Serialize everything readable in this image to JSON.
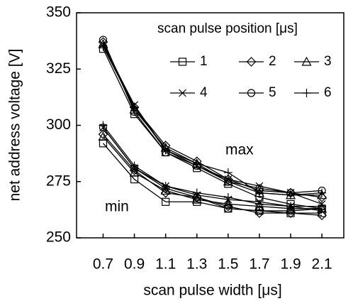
{
  "chart_data": {
    "type": "line",
    "xlabel": "scan pulse width [μs]",
    "ylabel": "net address voltage [V]",
    "legend_title": "scan pulse position [μs]",
    "legend_position": "upper right",
    "annotations": [
      "max",
      "min"
    ],
    "color": "#000000",
    "x": [
      0.7,
      0.9,
      1.1,
      1.3,
      1.5,
      1.7,
      1.9,
      2.1
    ],
    "xlim": [
      0.53,
      2.24
    ],
    "xticks": [
      0.7,
      0.9,
      1.1,
      1.3,
      1.5,
      1.7,
      1.9,
      2.1
    ],
    "ylim": [
      250,
      350
    ],
    "yticks": [
      250,
      275,
      300,
      325,
      350
    ],
    "series": [
      {
        "name": "1",
        "marker": "square",
        "max": [
          334,
          305,
          288,
          281,
          274,
          268,
          265,
          263
        ],
        "min": [
          292,
          276,
          266,
          266,
          263,
          262,
          261,
          261
        ]
      },
      {
        "name": "2",
        "marker": "diamond",
        "max": [
          337,
          308,
          291,
          284,
          276,
          271,
          270,
          268
        ],
        "min": [
          296,
          280,
          270,
          268,
          264,
          261,
          261,
          260
        ]
      },
      {
        "name": "3",
        "marker": "triangle",
        "max": [
          336,
          307,
          290,
          283,
          275,
          270,
          269,
          269
        ],
        "min": [
          295,
          279,
          271,
          267,
          265,
          264,
          263,
          263
        ]
      },
      {
        "name": "4",
        "marker": "x",
        "max": [
          336,
          309,
          289,
          282,
          276,
          273,
          270,
          265
        ],
        "min": [
          299,
          281,
          273,
          269,
          267,
          266,
          264,
          262
        ]
      },
      {
        "name": "5",
        "marker": "circle",
        "max": [
          338,
          306,
          288,
          282,
          275,
          272,
          270,
          271
        ],
        "min": [
          299,
          281,
          272,
          268,
          263,
          262,
          262,
          263
        ]
      },
      {
        "name": "6",
        "marker": "plus",
        "max": [
          335,
          308,
          289,
          283,
          279,
          270,
          269,
          270
        ],
        "min": [
          300,
          282,
          273,
          270,
          268,
          265,
          264,
          264
        ]
      }
    ]
  }
}
